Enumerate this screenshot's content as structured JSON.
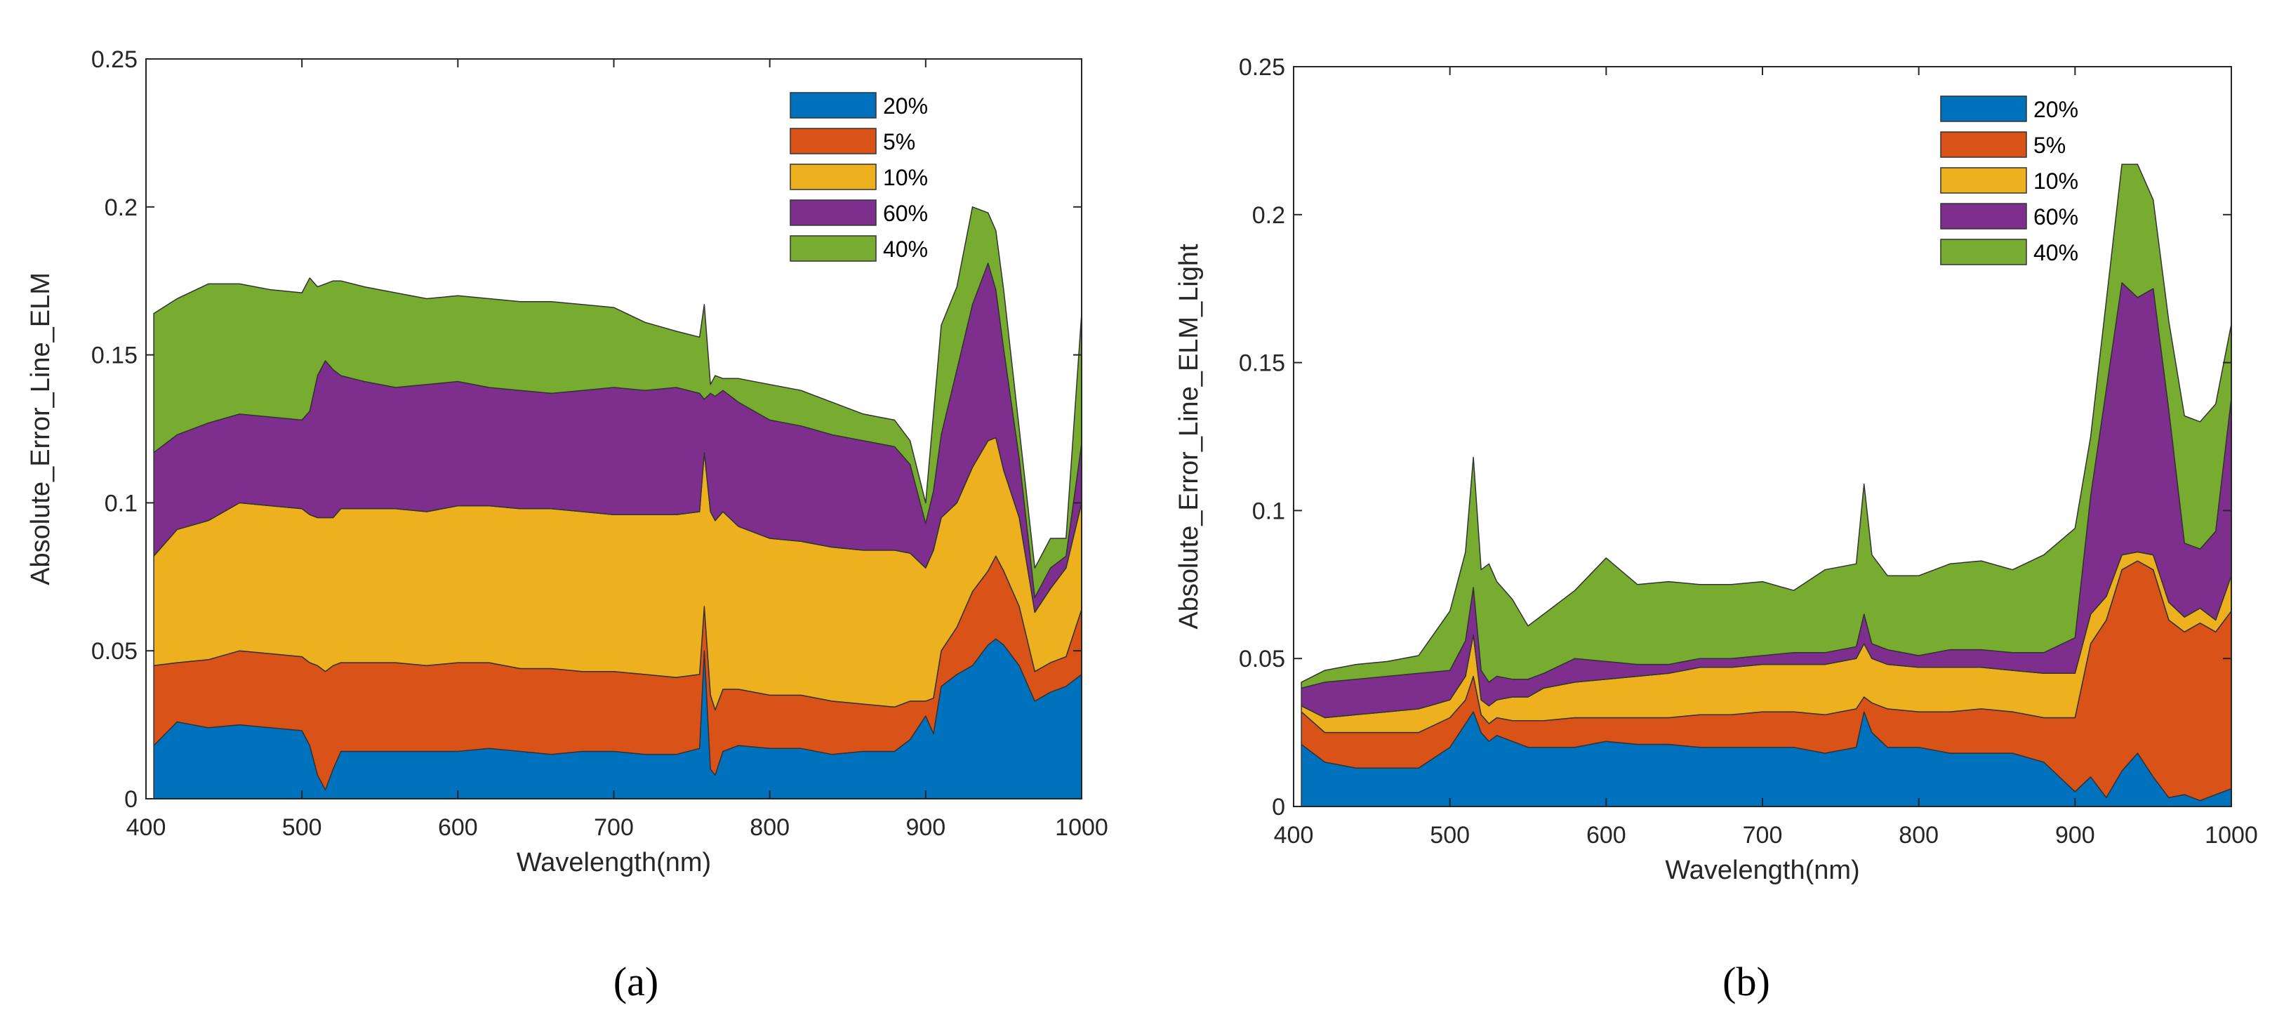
{
  "chart_data": [
    {
      "type": "area",
      "stacked": true,
      "caption": "(a)",
      "xlabel": "Wavelength(nm)",
      "ylabel": "Absolute_Error_Line_ELM",
      "xlim": [
        400,
        1000
      ],
      "ylim": [
        0,
        0.25
      ],
      "xticks": [
        400,
        500,
        600,
        700,
        800,
        900,
        1000
      ],
      "xtick_labels": [
        "400",
        "500",
        "600",
        "700",
        "800",
        "900",
        "1000"
      ],
      "yticks": [
        0,
        0.05,
        0.1,
        0.15,
        0.2,
        0.25
      ],
      "ytick_labels": [
        "0",
        "0.05",
        "0.1",
        "0.15",
        "0.2",
        "0.25"
      ],
      "legend_position": "top-right",
      "x": [
        405,
        420,
        440,
        460,
        480,
        500,
        505,
        510,
        515,
        520,
        525,
        540,
        560,
        580,
        600,
        620,
        640,
        660,
        680,
        700,
        720,
        740,
        755,
        758,
        762,
        765,
        770,
        780,
        800,
        820,
        840,
        860,
        880,
        890,
        900,
        905,
        910,
        920,
        930,
        940,
        945,
        950,
        960,
        970,
        980,
        990,
        1000
      ],
      "series": [
        {
          "name": "20%",
          "color": "#0072BD",
          "values": [
            0.018,
            0.026,
            0.024,
            0.025,
            0.024,
            0.023,
            0.018,
            0.008,
            0.003,
            0.01,
            0.016,
            0.016,
            0.016,
            0.016,
            0.016,
            0.017,
            0.016,
            0.015,
            0.016,
            0.016,
            0.015,
            0.015,
            0.017,
            0.05,
            0.01,
            0.008,
            0.016,
            0.018,
            0.017,
            0.017,
            0.015,
            0.016,
            0.016,
            0.02,
            0.028,
            0.022,
            0.038,
            0.042,
            0.045,
            0.052,
            0.054,
            0.052,
            0.045,
            0.033,
            0.036,
            0.038,
            0.042
          ]
        },
        {
          "name": "5%",
          "color": "#D95319",
          "values": [
            0.027,
            0.02,
            0.023,
            0.025,
            0.025,
            0.025,
            0.028,
            0.037,
            0.04,
            0.035,
            0.03,
            0.03,
            0.03,
            0.029,
            0.03,
            0.029,
            0.028,
            0.029,
            0.027,
            0.027,
            0.027,
            0.026,
            0.025,
            0.015,
            0.025,
            0.022,
            0.021,
            0.019,
            0.018,
            0.018,
            0.018,
            0.016,
            0.015,
            0.013,
            0.005,
            0.012,
            0.012,
            0.016,
            0.025,
            0.025,
            0.028,
            0.025,
            0.02,
            0.01,
            0.01,
            0.01,
            0.022
          ]
        },
        {
          "name": "10%",
          "color": "#EDB120",
          "values": [
            0.037,
            0.045,
            0.047,
            0.05,
            0.05,
            0.05,
            0.05,
            0.05,
            0.052,
            0.05,
            0.052,
            0.052,
            0.052,
            0.052,
            0.053,
            0.053,
            0.054,
            0.054,
            0.054,
            0.053,
            0.054,
            0.055,
            0.055,
            0.052,
            0.062,
            0.064,
            0.06,
            0.055,
            0.053,
            0.052,
            0.052,
            0.052,
            0.053,
            0.05,
            0.045,
            0.05,
            0.045,
            0.042,
            0.042,
            0.044,
            0.04,
            0.034,
            0.03,
            0.02,
            0.025,
            0.03,
            0.036
          ]
        },
        {
          "name": "60%",
          "color": "#7E2F8E",
          "values": [
            0.035,
            0.032,
            0.033,
            0.03,
            0.03,
            0.03,
            0.035,
            0.048,
            0.053,
            0.05,
            0.045,
            0.043,
            0.041,
            0.043,
            0.042,
            0.04,
            0.04,
            0.039,
            0.041,
            0.043,
            0.042,
            0.043,
            0.04,
            0.018,
            0.04,
            0.042,
            0.041,
            0.042,
            0.04,
            0.039,
            0.038,
            0.037,
            0.035,
            0.03,
            0.015,
            0.02,
            0.028,
            0.045,
            0.055,
            0.06,
            0.05,
            0.041,
            0.02,
            0.005,
            0.007,
            0.004,
            0.02
          ]
        },
        {
          "name": "40%",
          "color": "#77AC30",
          "values": [
            0.047,
            0.046,
            0.047,
            0.044,
            0.043,
            0.043,
            0.045,
            0.03,
            0.026,
            0.03,
            0.032,
            0.032,
            0.032,
            0.029,
            0.029,
            0.03,
            0.03,
            0.031,
            0.029,
            0.027,
            0.023,
            0.019,
            0.019,
            0.032,
            0.003,
            0.007,
            0.004,
            0.008,
            0.012,
            0.012,
            0.011,
            0.009,
            0.009,
            0.008,
            0.007,
            0.026,
            0.037,
            0.028,
            0.033,
            0.017,
            0.02,
            0.02,
            0.01,
            0.01,
            0.01,
            0.006,
            0.044
          ]
        }
      ]
    },
    {
      "type": "area",
      "stacked": true,
      "caption": "(b)",
      "xlabel": "Wavelength(nm)",
      "ylabel": "Absolute_Error_Line_ELM_Light",
      "xlim": [
        400,
        1000
      ],
      "ylim": [
        0,
        0.25
      ],
      "xticks": [
        400,
        500,
        600,
        700,
        800,
        900,
        1000
      ],
      "xtick_labels": [
        "400",
        "500",
        "600",
        "700",
        "800",
        "900",
        "1000"
      ],
      "yticks": [
        0,
        0.05,
        0.1,
        0.15,
        0.2,
        0.25
      ],
      "ytick_labels": [
        "0",
        "0.05",
        "0.1",
        "0.15",
        "0.2",
        "0.25"
      ],
      "legend_position": "top-right",
      "x": [
        405,
        420,
        440,
        460,
        480,
        500,
        510,
        515,
        520,
        525,
        530,
        540,
        550,
        560,
        580,
        600,
        620,
        640,
        660,
        680,
        700,
        720,
        740,
        760,
        765,
        770,
        780,
        800,
        820,
        840,
        860,
        880,
        900,
        910,
        920,
        930,
        940,
        950,
        960,
        970,
        980,
        990,
        1000
      ],
      "series": [
        {
          "name": "20%",
          "color": "#0072BD",
          "values": [
            0.021,
            0.015,
            0.013,
            0.013,
            0.013,
            0.02,
            0.028,
            0.032,
            0.025,
            0.022,
            0.024,
            0.022,
            0.02,
            0.02,
            0.02,
            0.022,
            0.021,
            0.021,
            0.02,
            0.02,
            0.02,
            0.02,
            0.018,
            0.02,
            0.032,
            0.025,
            0.02,
            0.02,
            0.018,
            0.018,
            0.018,
            0.015,
            0.005,
            0.01,
            0.003,
            0.012,
            0.018,
            0.01,
            0.003,
            0.004,
            0.002,
            0.004,
            0.006
          ]
        },
        {
          "name": "5%",
          "color": "#D95319",
          "values": [
            0.011,
            0.01,
            0.012,
            0.012,
            0.012,
            0.01,
            0.008,
            0.012,
            0.006,
            0.006,
            0.006,
            0.007,
            0.009,
            0.009,
            0.01,
            0.008,
            0.009,
            0.009,
            0.011,
            0.011,
            0.012,
            0.012,
            0.013,
            0.013,
            0.005,
            0.01,
            0.013,
            0.012,
            0.014,
            0.015,
            0.014,
            0.015,
            0.025,
            0.045,
            0.06,
            0.068,
            0.065,
            0.07,
            0.06,
            0.055,
            0.06,
            0.055,
            0.06
          ]
        },
        {
          "name": "10%",
          "color": "#EDB120",
          "values": [
            0.002,
            0.005,
            0.006,
            0.007,
            0.008,
            0.006,
            0.008,
            0.014,
            0.005,
            0.006,
            0.006,
            0.008,
            0.008,
            0.011,
            0.012,
            0.013,
            0.014,
            0.015,
            0.016,
            0.016,
            0.016,
            0.016,
            0.017,
            0.017,
            0.018,
            0.015,
            0.015,
            0.015,
            0.015,
            0.014,
            0.014,
            0.015,
            0.015,
            0.01,
            0.008,
            0.005,
            0.003,
            0.005,
            0.006,
            0.005,
            0.005,
            0.004,
            0.012
          ]
        },
        {
          "name": "60%",
          "color": "#7E2F8E",
          "values": [
            0.006,
            0.012,
            0.012,
            0.012,
            0.012,
            0.01,
            0.012,
            0.016,
            0.01,
            0.008,
            0.008,
            0.006,
            0.006,
            0.005,
            0.008,
            0.006,
            0.004,
            0.003,
            0.003,
            0.003,
            0.003,
            0.004,
            0.004,
            0.004,
            0.01,
            0.005,
            0.005,
            0.004,
            0.006,
            0.006,
            0.006,
            0.007,
            0.012,
            0.04,
            0.07,
            0.092,
            0.086,
            0.09,
            0.065,
            0.025,
            0.02,
            0.03,
            0.06
          ]
        },
        {
          "name": "40%",
          "color": "#77AC30",
          "values": [
            0.002,
            0.004,
            0.005,
            0.005,
            0.006,
            0.02,
            0.03,
            0.044,
            0.034,
            0.04,
            0.032,
            0.027,
            0.018,
            0.02,
            0.023,
            0.035,
            0.027,
            0.028,
            0.025,
            0.025,
            0.025,
            0.021,
            0.028,
            0.028,
            0.044,
            0.03,
            0.025,
            0.027,
            0.029,
            0.03,
            0.028,
            0.033,
            0.037,
            0.02,
            0.03,
            0.04,
            0.045,
            0.03,
            0.03,
            0.043,
            0.043,
            0.043,
            0.025
          ]
        }
      ]
    }
  ]
}
